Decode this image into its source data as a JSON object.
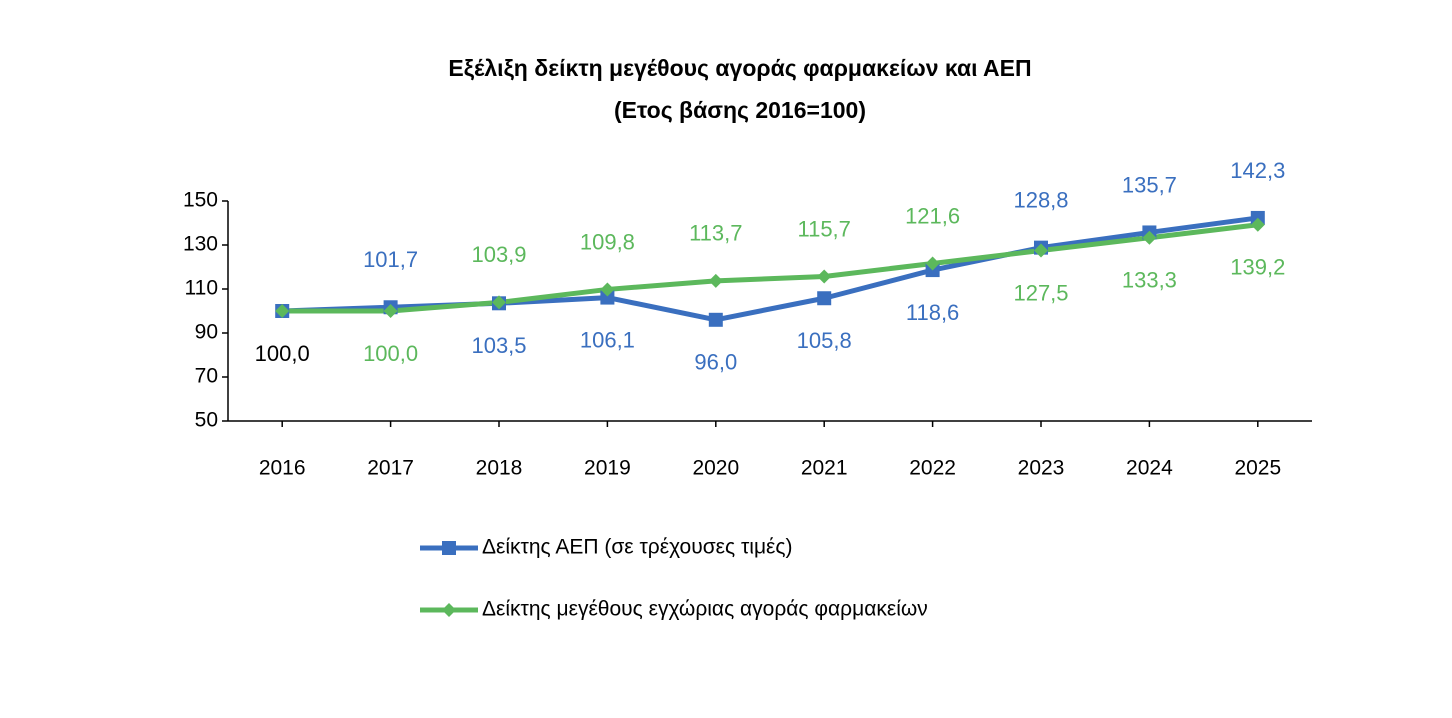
{
  "chart_data": {
    "type": "line",
    "title": "Εξέλιξη δείκτη μεγέθους αγοράς φαρμακείων και ΑΕΠ",
    "subtitle": "(Ετος βάσης 2016=100)",
    "categories": [
      "2016",
      "2017",
      "2018",
      "2019",
      "2020",
      "2021",
      "2022",
      "2023",
      "2024",
      "2025"
    ],
    "ylim": [
      50,
      150
    ],
    "yticks": [
      50,
      70,
      90,
      110,
      130,
      150
    ],
    "series": [
      {
        "name": "Δείκτης ΑΕΠ (σε τρέχουσες τιμές)",
        "color": "#3a6fbf",
        "marker": "square",
        "values": [
          100.0,
          101.7,
          103.5,
          106.1,
          96.0,
          105.8,
          118.6,
          128.8,
          135.7,
          142.3
        ],
        "value_labels": [
          "100,0",
          "101,7",
          "103,5",
          "106,1",
          "96,0",
          "105,8",
          "118,6",
          "128,8",
          "135,7",
          "142,3"
        ],
        "label_colors": [
          "#000000",
          "#3a6fbf",
          "#3a6fbf",
          "#3a6fbf",
          "#3a6fbf",
          "#3a6fbf",
          "#3a6fbf",
          "#3a6fbf",
          "#3a6fbf",
          "#3a6fbf"
        ]
      },
      {
        "name": "Δείκτης μεγέθους εγχώριας αγοράς φαρμακείων",
        "color": "#5cb85c",
        "marker": "diamond",
        "values": [
          100.0,
          100.0,
          103.9,
          109.8,
          113.7,
          115.7,
          121.6,
          127.5,
          133.3,
          139.2
        ],
        "value_labels": [
          null,
          "100,0",
          "103,9",
          "109,8",
          "113,7",
          "115,7",
          "121,6",
          "127,5",
          "133,3",
          "139,2"
        ],
        "label_colors": [
          null,
          "#5cb85c",
          "#5cb85c",
          "#5cb85c",
          "#5cb85c",
          "#5cb85c",
          "#5cb85c",
          "#5cb85c",
          "#5cb85c",
          "#5cb85c"
        ]
      }
    ]
  }
}
